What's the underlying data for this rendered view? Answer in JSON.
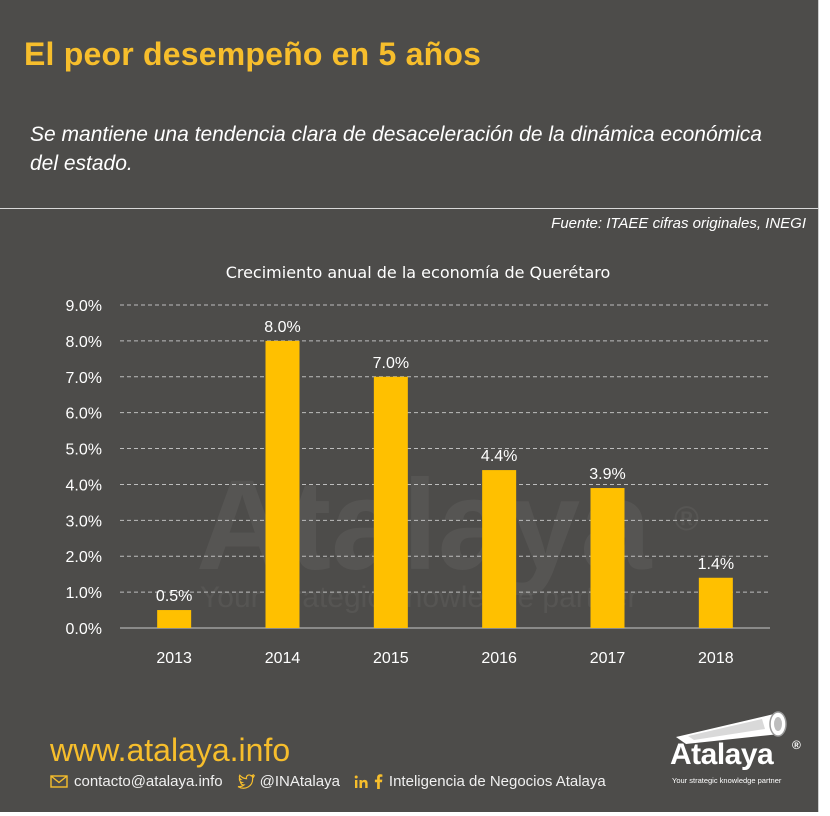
{
  "header": {
    "title": "El peor desempeño en 5 años",
    "subtitle": "Se mantiene una tendencia clara de desaceleración de la dinámica económica del estado.",
    "source": "Fuente: ITAEE cifras originales, INEGI"
  },
  "chart_data": {
    "type": "bar",
    "title": "Crecimiento anual de la economía de Querétaro",
    "categories": [
      "2013",
      "2014",
      "2015",
      "2016",
      "2017",
      "2018"
    ],
    "values": [
      0.5,
      8.0,
      7.0,
      4.4,
      3.9,
      1.4
    ],
    "value_labels": [
      "0.5%",
      "8.0%",
      "7.0%",
      "4.4%",
      "3.9%",
      "1.4%"
    ],
    "y_ticks": [
      "0.0%",
      "1.0%",
      "2.0%",
      "3.0%",
      "4.0%",
      "5.0%",
      "6.0%",
      "7.0%",
      "8.0%",
      "9.0%"
    ],
    "ylim": [
      0,
      9
    ],
    "grid": true,
    "legend": "none",
    "bar_color": "#ffc000"
  },
  "watermark": {
    "word": "Atalaya",
    "tagline": "Your strategic knowledge partner",
    "registered": "®"
  },
  "footer": {
    "website": "www.atalaya.info",
    "email": "contacto@atalaya.info",
    "twitter": "@INAtalaya",
    "social_name": "Inteligencia de Negocios Atalaya",
    "logo_word": "Atalaya",
    "logo_registered": "®",
    "logo_tagline": "Your strategic knowledge partner"
  },
  "colors": {
    "background": "#4d4c4a",
    "accent": "#f7be2c",
    "bar": "#ffc000"
  },
  "icons": [
    "email-icon",
    "twitter-icon",
    "linkedin-icon",
    "facebook-icon",
    "telescope-logo-icon"
  ]
}
